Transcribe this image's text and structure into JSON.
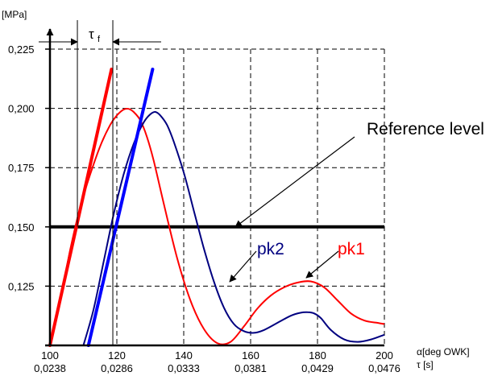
{
  "chart_data": {
    "type": "line",
    "ylabel": "[MPa]",
    "xlabel": "α[deg OWK]",
    "x2label": "τ [s]",
    "x_ticks": [
      100,
      120,
      140,
      160,
      180,
      200
    ],
    "x2_ticks": [
      "0,0238",
      "0,0286",
      "0,0333",
      "0,0381",
      "0,0429",
      "0,0476"
    ],
    "y_ticks": [
      0.125,
      0.15,
      0.175,
      0.2,
      0.225
    ],
    "y_tick_labels": [
      "0,125",
      "0,150",
      "0,175",
      "0,200",
      "0,225"
    ],
    "xlim": [
      100,
      200
    ],
    "ylim": [
      0.1,
      0.225
    ],
    "grid": "dashed",
    "tau_label": "τ",
    "tau_sub": "f",
    "reference": {
      "label": "Reference level",
      "y": 0.15,
      "color": "#000000"
    },
    "series": [
      {
        "name": "pk1",
        "color": "#ff0000",
        "x": [
          100,
          103,
          106,
          109,
          112,
          115,
          118,
          120,
          122,
          123.5,
          125,
          127,
          129,
          131,
          134,
          138,
          142,
          146,
          150,
          154,
          158,
          162,
          166,
          170,
          174,
          178,
          182,
          186,
          190,
          194,
          198,
          200
        ],
        "y": [
          0.1,
          0.118,
          0.14,
          0.158,
          0.172,
          0.184,
          0.193,
          0.197,
          0.1995,
          0.1998,
          0.1985,
          0.195,
          0.188,
          0.178,
          0.16,
          0.137,
          0.119,
          0.107,
          0.101,
          0.1015,
          0.108,
          0.1155,
          0.121,
          0.1245,
          0.1265,
          0.127,
          0.1245,
          0.119,
          0.1135,
          0.1105,
          0.1095,
          0.109
        ]
      },
      {
        "name": "pk2",
        "color": "#000080",
        "x": [
          110,
          113,
          116,
          119,
          122,
          125,
          128,
          130,
          131.5,
          133,
          135,
          137,
          140,
          143,
          146,
          149,
          152,
          155,
          158,
          161,
          164,
          168,
          172,
          175,
          177,
          179,
          181,
          184,
          188,
          192,
          196,
          200
        ],
        "y": [
          0.1,
          0.115,
          0.135,
          0.155,
          0.172,
          0.185,
          0.194,
          0.1975,
          0.1985,
          0.197,
          0.193,
          0.186,
          0.173,
          0.157,
          0.141,
          0.127,
          0.116,
          0.109,
          0.106,
          0.1053,
          0.1065,
          0.1095,
          0.1125,
          0.1138,
          0.114,
          0.1135,
          0.1115,
          0.1065,
          0.1025,
          0.1015,
          0.1025,
          0.1045
        ]
      }
    ],
    "tangents": [
      {
        "color": "#ff0000",
        "x": [
          100,
          118.4
        ],
        "y": [
          0.1,
          0.2165
        ]
      },
      {
        "color": "#0000ff",
        "x": [
          111.5,
          130.7
        ],
        "y": [
          0.1,
          0.2165
        ]
      }
    ]
  }
}
